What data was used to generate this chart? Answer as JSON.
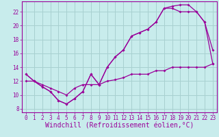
{
  "xlabel": "Windchill (Refroidissement éolien,°C)",
  "background_color": "#c8ecec",
  "grid_color": "#a8d0d0",
  "line_color": "#990099",
  "xlim": [
    -0.5,
    23.5
  ],
  "ylim": [
    7.5,
    23.5
  ],
  "xticks": [
    0,
    1,
    2,
    3,
    4,
    5,
    6,
    7,
    8,
    9,
    10,
    11,
    12,
    13,
    14,
    15,
    16,
    17,
    18,
    19,
    20,
    21,
    22,
    23
  ],
  "yticks": [
    8,
    10,
    12,
    14,
    16,
    18,
    20,
    22
  ],
  "line1_x": [
    0,
    1,
    2,
    3,
    4,
    5,
    6,
    7,
    8,
    9,
    10,
    11,
    12,
    13,
    14,
    15,
    16,
    17,
    18,
    19,
    20,
    21,
    22,
    23
  ],
  "line1_y": [
    13.0,
    12.0,
    11.2,
    10.5,
    9.2,
    8.7,
    9.5,
    10.5,
    13.0,
    11.5,
    14.0,
    15.5,
    16.5,
    18.5,
    19.0,
    19.5,
    20.5,
    22.5,
    22.5,
    22.0,
    22.0,
    22.0,
    20.5,
    16.5
  ],
  "line2_x": [
    0,
    1,
    2,
    3,
    4,
    5,
    6,
    7,
    8,
    9,
    10,
    11,
    12,
    13,
    14,
    15,
    16,
    17,
    18,
    19,
    20,
    21,
    22,
    23
  ],
  "line2_y": [
    13.0,
    12.0,
    11.2,
    10.5,
    9.2,
    8.7,
    9.5,
    10.5,
    13.0,
    11.5,
    14.0,
    15.5,
    16.5,
    18.5,
    19.0,
    19.5,
    20.5,
    22.5,
    22.8,
    23.0,
    23.0,
    22.0,
    20.5,
    14.5
  ],
  "line3_x": [
    0,
    1,
    2,
    3,
    4,
    5,
    6,
    7,
    8,
    9,
    10,
    11,
    12,
    13,
    14,
    15,
    16,
    17,
    18,
    19,
    20,
    21,
    22,
    23
  ],
  "line3_y": [
    12.0,
    12.0,
    11.5,
    11.0,
    10.5,
    10.0,
    11.0,
    11.5,
    11.5,
    11.5,
    12.0,
    12.2,
    12.5,
    13.0,
    13.0,
    13.0,
    13.5,
    13.5,
    14.0,
    14.0,
    14.0,
    14.0,
    14.0,
    14.5
  ],
  "tick_fontsize": 5.5,
  "xlabel_fontsize": 7.0,
  "markersize": 2.0,
  "linewidth": 0.9
}
